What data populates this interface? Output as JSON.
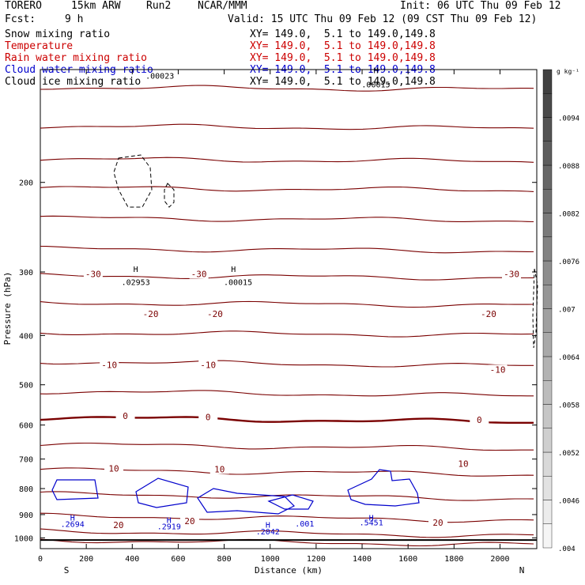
{
  "header": {
    "model": "TORERO",
    "grid": "15km ARW",
    "run": "Run2",
    "org": "NCAR/MMM",
    "init": "Init: 06 UTC Thu 09 Feb 12",
    "fcst_label": "Fcst:",
    "fcst_value": "9 h",
    "valid": "Valid: 15 UTC Thu 09 Feb 12 (09 CST Thu 09 Feb 12)"
  },
  "fields": [
    {
      "name": "Snow mixing ratio",
      "color": "#000000",
      "xy": "XY= 149.0,  5.1 to 149.0,149.8"
    },
    {
      "name": "Temperature",
      "color": "#cc0000",
      "xy": "XY= 149.0,  5.1 to 149.0,149.8"
    },
    {
      "name": "Rain water mixing ratio",
      "color": "#cc0000",
      "xy": "XY= 149.0,  5.1 to 149.0,149.8"
    },
    {
      "name": "Cloud water mixing ratio",
      "color": "#0000cc",
      "xy": "XY= 149.0,  5.1 to 149.0,149.8"
    },
    {
      "name": "Cloud ice mixing ratio",
      "color": "#000000",
      "xy": "XY= 149.0,  5.1 to 149.0,149.8"
    }
  ],
  "chart_data": {
    "type": "contour",
    "xlabel": "Distance (km)",
    "ylabel": "Pressure (hPa)",
    "x_ticks": [
      0,
      200,
      400,
      600,
      800,
      1000,
      1200,
      1400,
      1600,
      1800,
      2000
    ],
    "y_ticks": [
      200,
      300,
      400,
      500,
      600,
      700,
      800,
      900,
      1000
    ],
    "xlim": [
      0,
      2160
    ],
    "ylim": [
      1050,
      120
    ],
    "y_scale": "log",
    "left_end": "S",
    "right_end": "N",
    "colorbar": {
      "unit": "g kg⁻¹",
      "ticks": [
        ".004",
        ".0046",
        ".0052",
        ".0058",
        ".0064",
        ".007",
        ".0076",
        ".0082",
        ".0088",
        ".0094"
      ],
      "min": 0.004,
      "max": 0.01,
      "step": 0.0003
    },
    "temperature_labels": [
      {
        "text": "-30",
        "x": 230,
        "p": 305
      },
      {
        "text": "-30",
        "x": 690,
        "p": 305
      },
      {
        "text": "-30",
        "x": 2050,
        "p": 305
      },
      {
        "text": "-20",
        "x": 480,
        "p": 365
      },
      {
        "text": "-20",
        "x": 760,
        "p": 365
      },
      {
        "text": "-20",
        "x": 1950,
        "p": 365
      },
      {
        "text": "-10",
        "x": 300,
        "p": 460
      },
      {
        "text": "-10",
        "x": 730,
        "p": 460
      },
      {
        "text": "-10",
        "x": 1990,
        "p": 470
      },
      {
        "text": "0",
        "x": 370,
        "p": 580
      },
      {
        "text": "0",
        "x": 730,
        "p": 583
      },
      {
        "text": "0",
        "x": 1910,
        "p": 590
      },
      {
        "text": "10",
        "x": 320,
        "p": 735
      },
      {
        "text": "10",
        "x": 780,
        "p": 738
      },
      {
        "text": "10",
        "x": 1840,
        "p": 720
      },
      {
        "text": "20",
        "x": 340,
        "p": 950
      },
      {
        "text": "20",
        "x": 650,
        "p": 933
      },
      {
        "text": "20",
        "x": 1730,
        "p": 940
      }
    ],
    "temperature_isotherms_p": [
      130,
      155,
      180,
      205,
      235,
      270,
      305,
      345,
      395,
      450,
      515,
      580,
      655,
      735,
      820,
      905,
      970,
      1010
    ],
    "freezing_level_p": 580,
    "max_labels": [
      {
        "text": "H",
        "x": 415,
        "p": 300,
        "color": "#000000"
      },
      {
        "text": ".02953",
        "x": 415,
        "p": 318,
        "color": "#000000"
      },
      {
        "text": "H",
        "x": 840,
        "p": 300,
        "color": "#000000"
      },
      {
        "text": ".00015",
        "x": 860,
        "p": 318,
        "color": "#000000"
      },
      {
        "text": ".00023",
        "x": 520,
        "p": 125,
        "color": "#000000"
      },
      {
        "text": "H",
        "x": 1460,
        "p": 122,
        "color": "#000000"
      },
      {
        "text": ".00015",
        "x": 1460,
        "p": 130,
        "color": "#000000"
      },
      {
        "text": "H",
        "x": 140,
        "p": 925,
        "color": "#0000cc"
      },
      {
        "text": ".2694",
        "x": 140,
        "p": 952,
        "color": "#0000cc"
      },
      {
        "text": "H",
        "x": 560,
        "p": 935,
        "color": "#0000cc"
      },
      {
        "text": ".2919",
        "x": 560,
        "p": 962,
        "color": "#0000cc"
      },
      {
        "text": "H",
        "x": 990,
        "p": 955,
        "color": "#0000cc"
      },
      {
        "text": ".2042",
        "x": 990,
        "p": 985,
        "color": "#0000cc"
      },
      {
        "text": ".001",
        "x": 1150,
        "p": 950,
        "color": "#0000cc"
      },
      {
        "text": "H",
        "x": 1440,
        "p": 925,
        "color": "#0000cc"
      },
      {
        "text": ".5451",
        "x": 1440,
        "p": 945,
        "color": "#0000cc"
      }
    ]
  }
}
